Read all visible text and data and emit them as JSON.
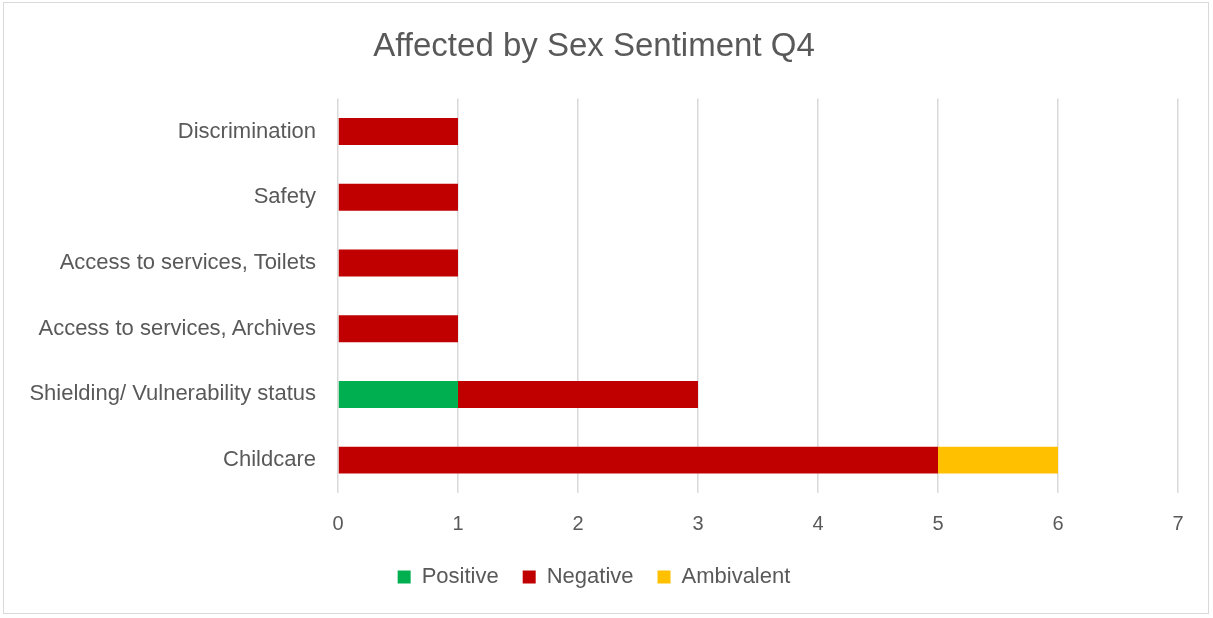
{
  "chart_data": {
    "type": "bar",
    "title": "Affected by Sex Sentiment Q4",
    "orientation": "horizontal",
    "stacked": true,
    "categories": [
      "Discrimination",
      "Safety",
      "Access to services, Toilets",
      "Access to services, Archives",
      "Shielding/ Vulnerability status",
      "Childcare"
    ],
    "series": [
      {
        "name": "Positive",
        "color": "#00b050",
        "values": [
          null,
          null,
          null,
          null,
          1,
          null
        ]
      },
      {
        "name": "Negative",
        "color": "#c00000",
        "values": [
          1,
          1,
          1,
          1,
          2,
          5
        ]
      },
      {
        "name": "Ambivalent",
        "color": "#ffc000",
        "values": [
          null,
          null,
          null,
          null,
          null,
          1
        ]
      }
    ],
    "xlim": [
      0,
      7
    ],
    "xticks": [
      0,
      1,
      2,
      3,
      4,
      5,
      6,
      7
    ],
    "grid": "x",
    "legend": "bottom"
  }
}
